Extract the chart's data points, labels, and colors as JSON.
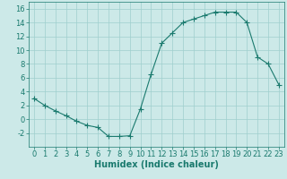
{
  "x": [
    0,
    1,
    2,
    3,
    4,
    5,
    6,
    7,
    8,
    9,
    10,
    11,
    12,
    13,
    14,
    15,
    16,
    17,
    18,
    19,
    20,
    21,
    22,
    23
  ],
  "y": [
    3.0,
    2.0,
    1.2,
    0.5,
    -0.3,
    -0.9,
    -1.2,
    -2.5,
    -2.5,
    -2.4,
    1.5,
    6.5,
    11.0,
    12.5,
    14.0,
    14.5,
    15.0,
    15.5,
    15.5,
    15.5,
    14.0,
    9.0,
    8.0,
    5.0
  ],
  "line_color": "#1a7a6e",
  "marker": "+",
  "bg_color": "#cce9e8",
  "grid_color": "#9fcfcd",
  "xlabel": "Humidex (Indice chaleur)",
  "ylim": [
    -4,
    17
  ],
  "xlim": [
    -0.5,
    23.5
  ],
  "yticks": [
    -2,
    0,
    2,
    4,
    6,
    8,
    10,
    12,
    14,
    16
  ],
  "xticks": [
    0,
    1,
    2,
    3,
    4,
    5,
    6,
    7,
    8,
    9,
    10,
    11,
    12,
    13,
    14,
    15,
    16,
    17,
    18,
    19,
    20,
    21,
    22,
    23
  ],
  "tick_color": "#1a7a6e",
  "label_fontsize": 7,
  "tick_fontsize": 6
}
